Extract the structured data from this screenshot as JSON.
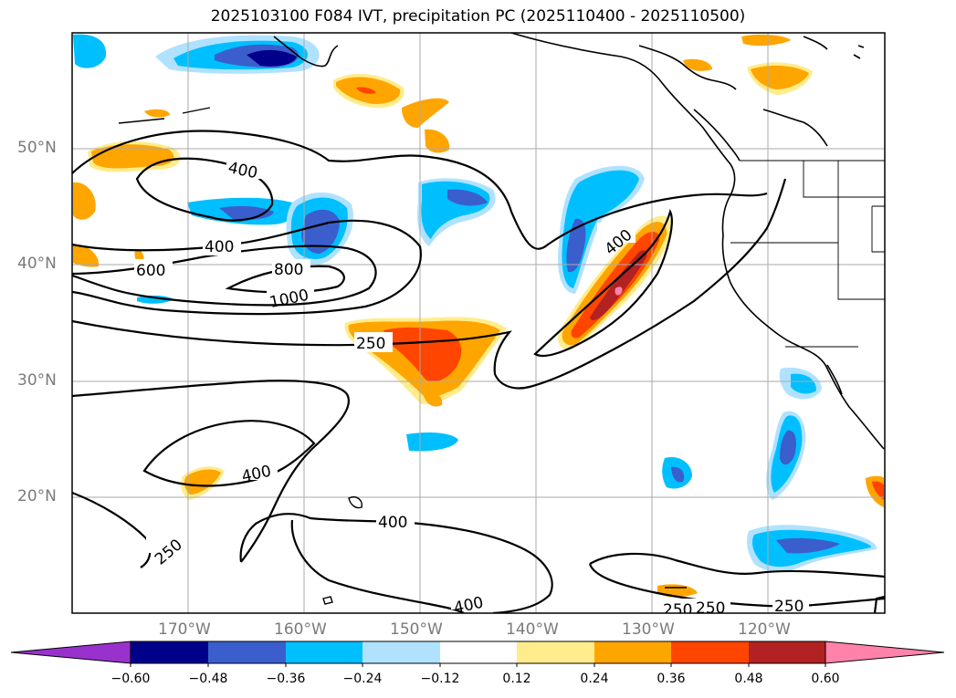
{
  "title": "2025103100 F084 IVT, precipitation PC (2025110400 - 2025110500)",
  "map": {
    "lon_range": [
      180,
      110
    ],
    "lat_range": [
      10,
      60
    ],
    "lat_labels": [
      "50°N",
      "40°N",
      "30°N",
      "20°N"
    ],
    "lon_labels": [
      "170°W",
      "160°W",
      "150°W",
      "140°W",
      "130°W",
      "120°W"
    ],
    "gridlines": true,
    "contour_labels": [
      "400",
      "400",
      "600",
      "800",
      "1000",
      "250",
      "400",
      "400",
      "250",
      "400",
      "400",
      "250",
      "250",
      "250"
    ]
  },
  "colorbar": {
    "ticks": [
      "−0.60",
      "−0.48",
      "−0.36",
      "−0.24",
      "−0.12",
      "0.12",
      "0.24",
      "0.36",
      "0.48",
      "0.60"
    ],
    "colors": [
      "#9932cc",
      "#00008b",
      "#3a5fcd",
      "#00bfff",
      "#b0e2ff",
      "#ffffff",
      "#ffec8b",
      "#ffa500",
      "#ff4500",
      "#b22222",
      "#ff82ab"
    ],
    "extend": "both"
  }
}
